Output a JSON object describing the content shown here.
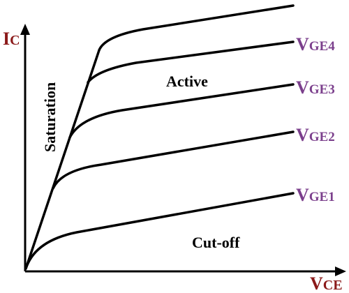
{
  "axes": {
    "y": {
      "main": "I",
      "sub": "C"
    },
    "x": {
      "main": "V",
      "sub": "CE"
    },
    "title_color": "#8B1A1A"
  },
  "curves": [
    {
      "main": "V",
      "sub": "GE4"
    },
    {
      "main": "V",
      "sub": "GE3"
    },
    {
      "main": "V",
      "sub": "GE2"
    },
    {
      "main": "V",
      "sub": "GE1"
    }
  ],
  "curve_label_color": "#7B3F8C",
  "regions": {
    "active": "Active",
    "saturation": "Saturation",
    "cutoff": "Cut-off"
  }
}
